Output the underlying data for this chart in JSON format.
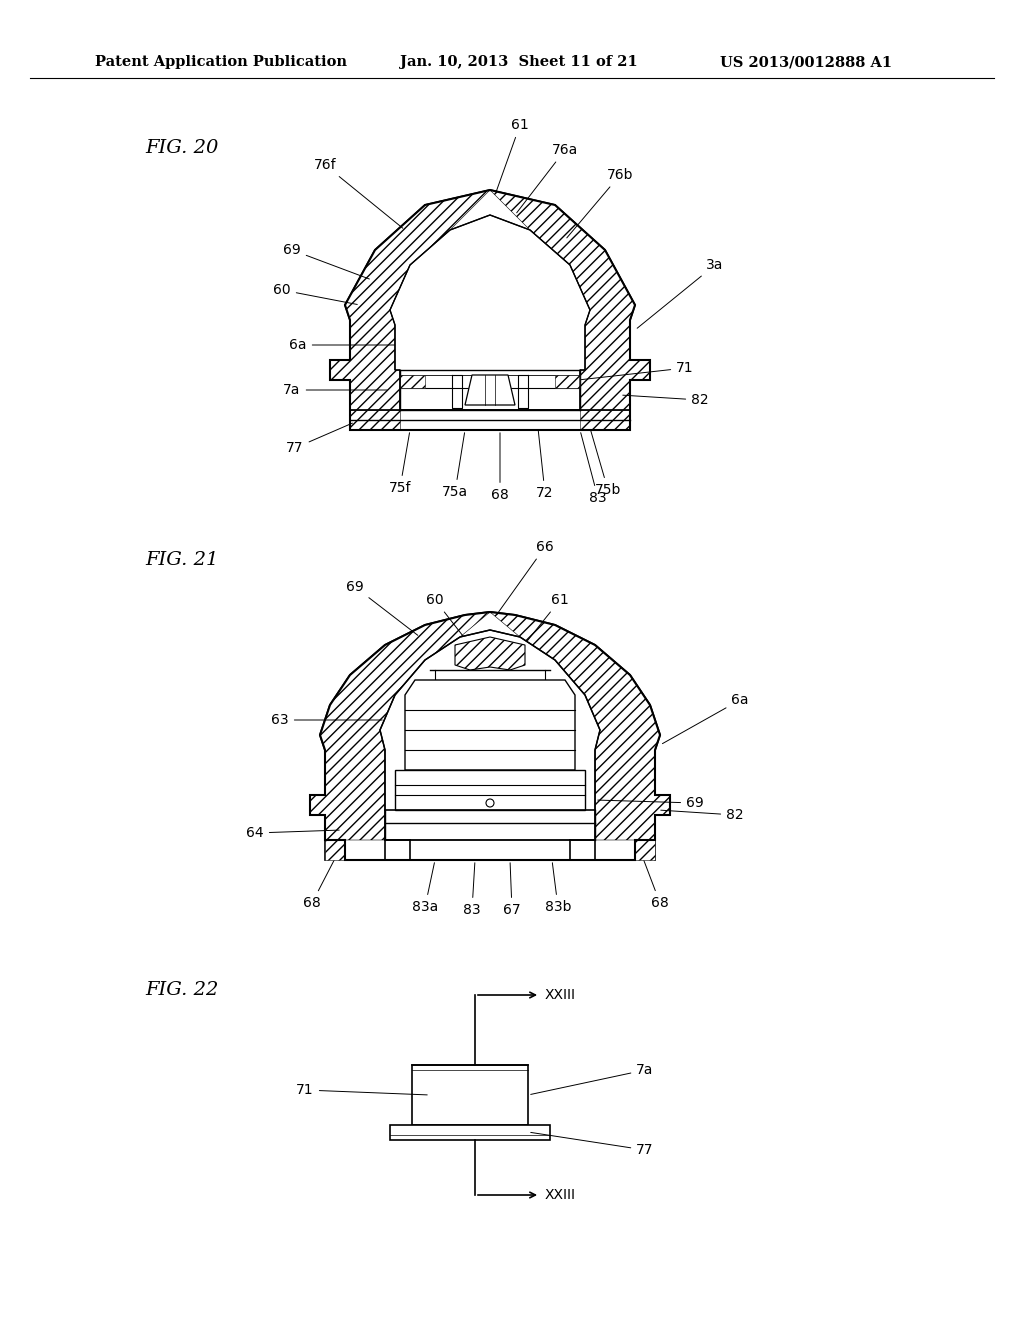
{
  "background_color": "#ffffff",
  "header_text": "Patent Application Publication",
  "header_date": "Jan. 10, 2013  Sheet 11 of 21",
  "header_patent": "US 2013/0012888 A1",
  "fig20_label": "FIG. 20",
  "fig21_label": "FIG. 21",
  "fig22_label": "FIG. 22",
  "text_fontsize": 10,
  "label_fontsize": 14,
  "header_fontsize": 10.5
}
